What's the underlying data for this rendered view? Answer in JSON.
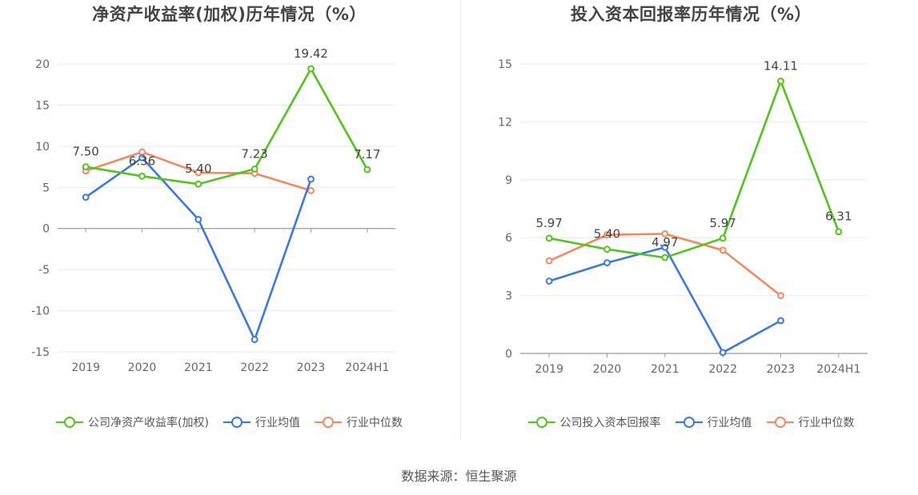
{
  "source_text": "数据来源：恒生聚源",
  "chart_data": [
    {
      "type": "line",
      "title": "净资产收益率(加权)历年情况（%）",
      "categories": [
        "2019",
        "2020",
        "2021",
        "2022",
        "2023",
        "2024H1"
      ],
      "ylim": [
        -15,
        20
      ],
      "yticks": [
        20,
        15,
        10,
        5,
        0,
        -5,
        -10,
        -15
      ],
      "grid": true,
      "legend_position": "bottom",
      "series": [
        {
          "name": "公司净资产收益率(加权)",
          "color": "#52c41a",
          "values": [
            7.5,
            6.36,
            5.4,
            7.23,
            19.42,
            7.17
          ],
          "labels": [
            "7.50",
            "6.36",
            "5.40",
            "7.23",
            "19.42",
            "7.17"
          ]
        },
        {
          "name": "行业均值",
          "color": "#3b78e7",
          "values": [
            3.8,
            8.6,
            1.1,
            -13.5,
            6.0,
            null
          ]
        },
        {
          "name": "行业中位数",
          "color": "#f4895f",
          "values": [
            7.0,
            9.3,
            6.8,
            6.7,
            4.6,
            null
          ]
        }
      ]
    },
    {
      "type": "line",
      "title": "投入资本回报率历年情况（%）",
      "categories": [
        "2019",
        "2020",
        "2021",
        "2022",
        "2023",
        "2024H1"
      ],
      "ylim": [
        0,
        15
      ],
      "yticks": [
        15,
        12,
        9,
        6,
        3,
        0
      ],
      "grid": true,
      "legend_position": "bottom",
      "series": [
        {
          "name": "公司投入资本回报率",
          "color": "#52c41a",
          "values": [
            5.97,
            5.4,
            4.97,
            5.97,
            14.11,
            6.31
          ],
          "labels": [
            "5.97",
            "5.40",
            "4.97",
            "5.97",
            "14.11",
            "6.31"
          ]
        },
        {
          "name": "行业均值",
          "color": "#3b78e7",
          "values": [
            3.75,
            4.7,
            5.5,
            0.05,
            1.7,
            null
          ]
        },
        {
          "name": "行业中位数",
          "color": "#f4895f",
          "values": [
            4.8,
            6.15,
            6.2,
            5.35,
            3.0,
            null
          ]
        }
      ]
    }
  ]
}
